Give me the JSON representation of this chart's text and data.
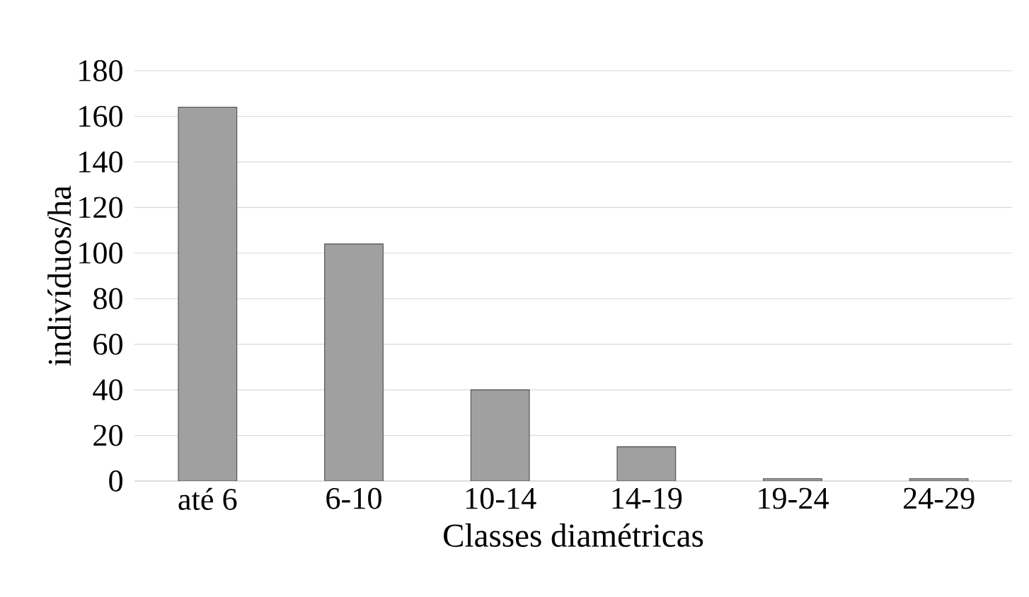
{
  "chart_data": {
    "type": "bar",
    "xlabel": "Classes diamétricas",
    "ylabel": "indivíduos/ha",
    "categories": [
      "até 6",
      "6-10",
      "10-14",
      "14-19",
      "19-24",
      "24-29"
    ],
    "values": [
      164,
      104,
      40,
      15,
      1,
      1
    ],
    "color": "#a0a0a0",
    "ylim": [
      0,
      180
    ],
    "yticks": [
      0,
      20,
      40,
      60,
      80,
      100,
      120,
      140,
      160,
      180
    ],
    "grid": "y"
  }
}
